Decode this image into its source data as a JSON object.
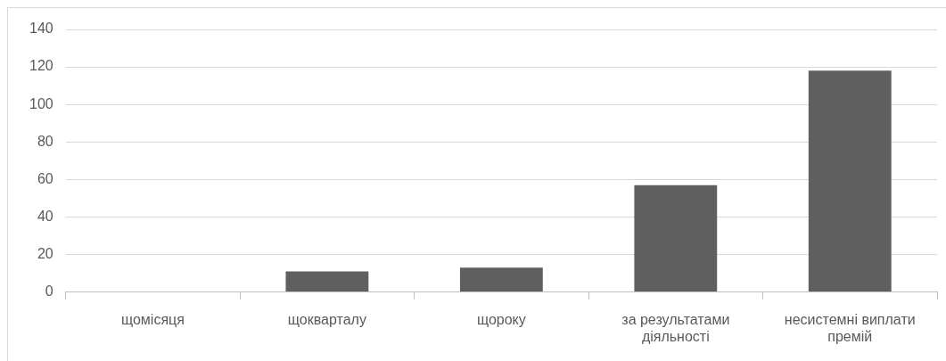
{
  "chart_data": {
    "type": "bar",
    "categories": [
      "щомісяця",
      "щокварталу",
      "щороку",
      "за результатами діяльності",
      "несистемні виплати премій"
    ],
    "values": [
      0,
      11,
      13,
      57,
      118
    ],
    "color": "#5f5f5f",
    "ylim": [
      0,
      140
    ],
    "yticks": [
      0,
      20,
      40,
      60,
      80,
      100,
      120,
      140
    ],
    "grid": "y"
  }
}
